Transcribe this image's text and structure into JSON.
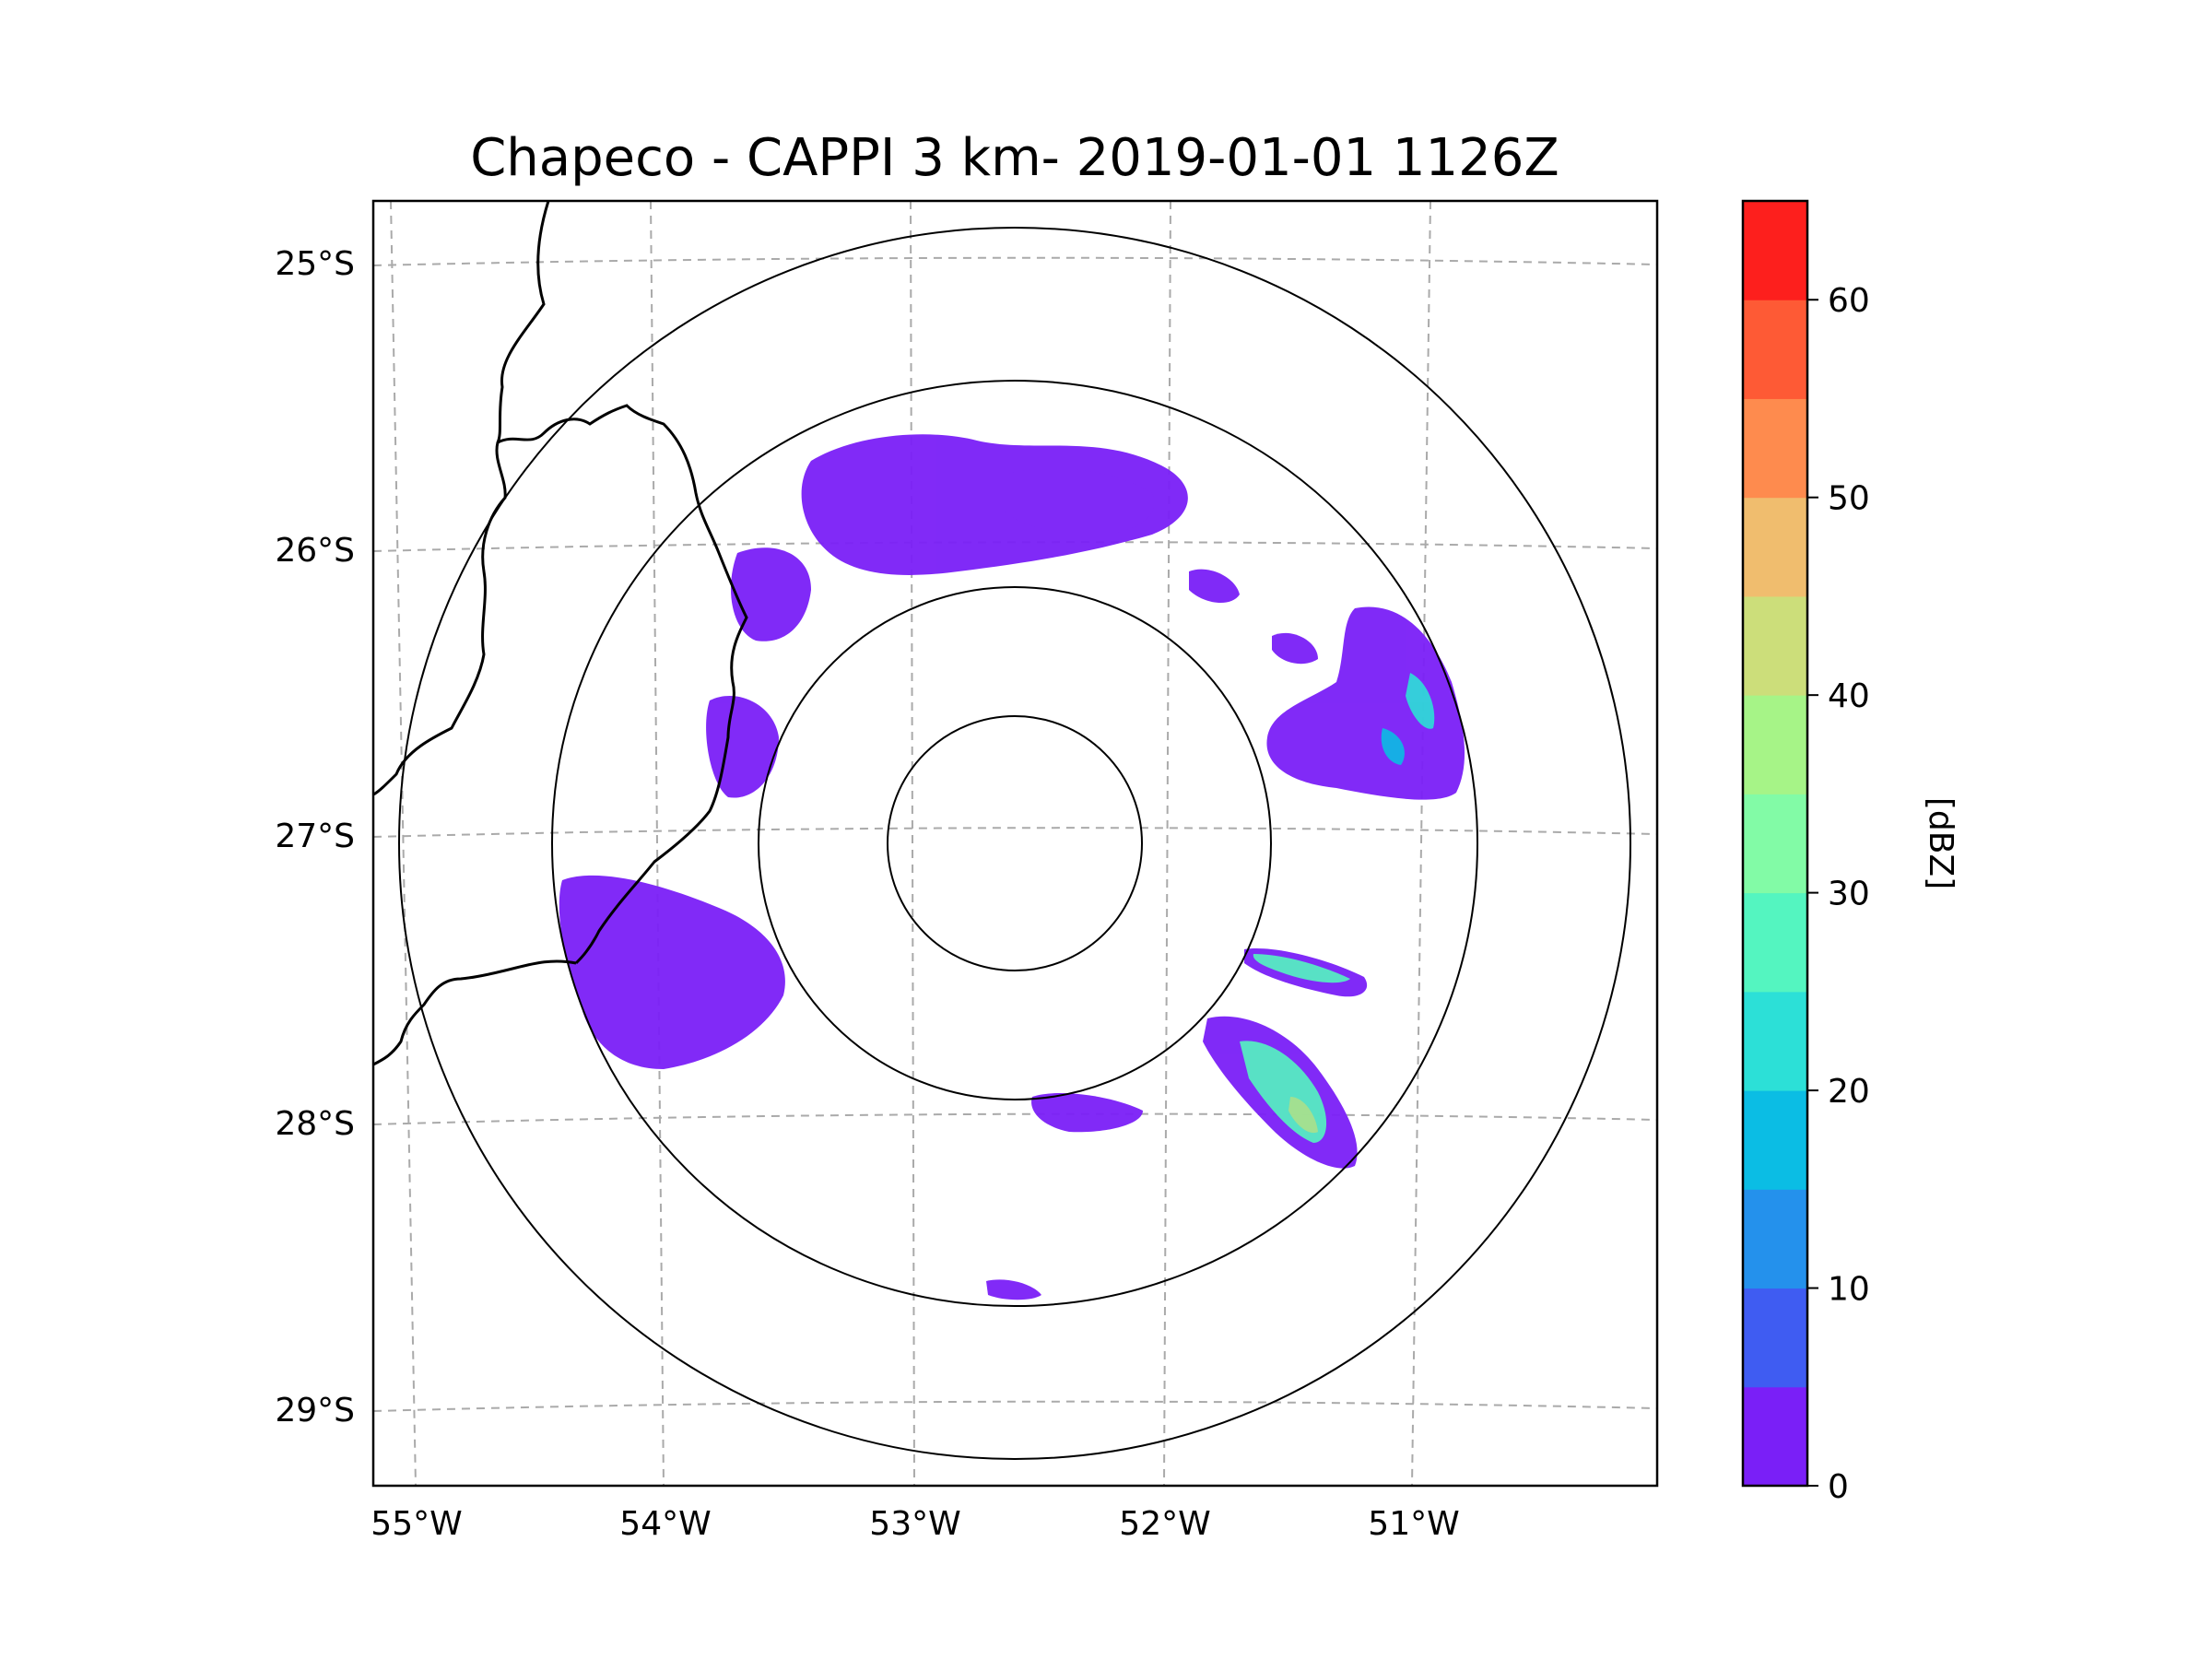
{
  "title": "Chapeco - CAPPI 3 km- 2019-01-01 1126Z",
  "map": {
    "lon_labels": [
      "55°W",
      "54°W",
      "53°W",
      "52°W",
      "51°W"
    ],
    "lat_labels": [
      "25°S",
      "26°S",
      "27°S",
      "28°S",
      "29°S"
    ],
    "range_rings_count": 4,
    "borders": "country and state boundaries (black lines)",
    "gridlines": "dashed gray"
  },
  "colorbar": {
    "label": "[dBZ]",
    "ticks": [
      "0",
      "10",
      "20",
      "30",
      "40",
      "50",
      "60"
    ],
    "min": 0,
    "max": 65,
    "step": 5,
    "colors": [
      "#7a1ff7",
      "#3f5cf2",
      "#2491ec",
      "#0bbde4",
      "#2ce0d7",
      "#54f5c0",
      "#82fba6",
      "#a6f487",
      "#ccde7a",
      "#f0bd6e",
      "#fe8b4e",
      "#fe5a35",
      "#fd1f1d"
    ]
  }
}
